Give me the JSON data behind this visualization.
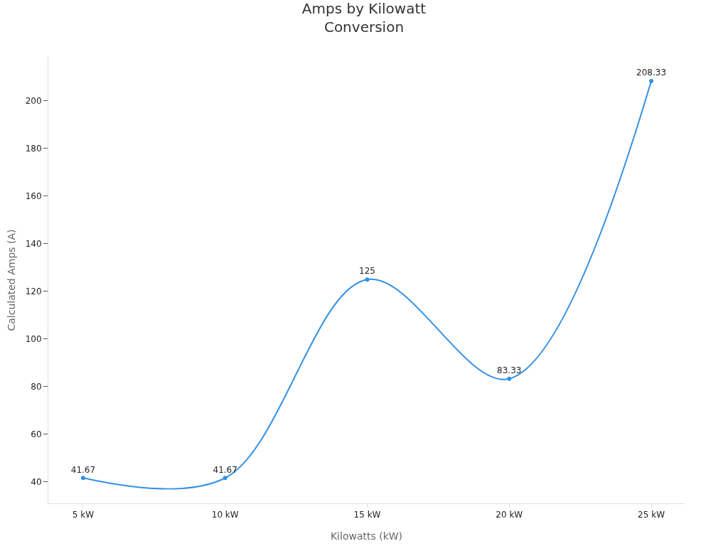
{
  "chart_data": {
    "type": "line",
    "title": "Amps by Kilowatt\nConversion",
    "xlabel": "Kilowatts (kW)",
    "ylabel": "Calculated Amps (A)",
    "categories": [
      "5 kW",
      "10 kW",
      "15 kW",
      "20 kW",
      "25 kW"
    ],
    "series": [
      {
        "color": "#3391e6",
        "values": [
          41.67,
          41.67,
          125,
          83.33,
          208.33
        ]
      }
    ],
    "ylim": [
      31,
      218.5
    ],
    "yticks": [
      40,
      60,
      80,
      100,
      120,
      140,
      160,
      180,
      200
    ],
    "data_labels": true,
    "marker": "circle",
    "line_style": "solid",
    "grid": false,
    "legend": false
  }
}
